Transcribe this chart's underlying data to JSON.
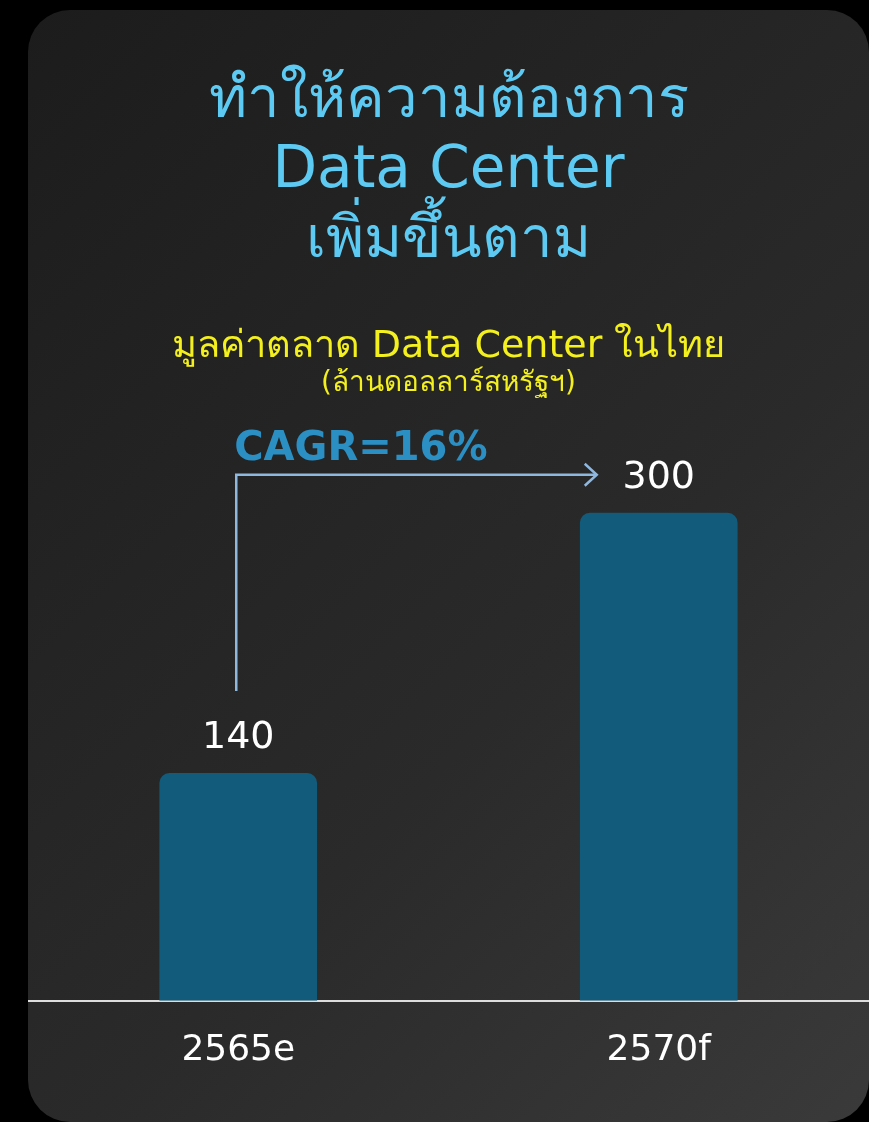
{
  "chart_data": {
    "type": "bar",
    "title": "ทำให้ความต้องการ\nData Center\nเพิ่มขึ้นตาม",
    "subtitle": "มูลค่าตลาด Data Center ในไทย\n(ล้านดอลลาร์สหรัฐฯ)",
    "categories": [
      "2565e",
      "2570f"
    ],
    "values": [
      140,
      300
    ],
    "color": "#135b7a",
    "data_labels": true,
    "legend": false,
    "annotations": [
      "CAGR=16%"
    ]
  }
}
